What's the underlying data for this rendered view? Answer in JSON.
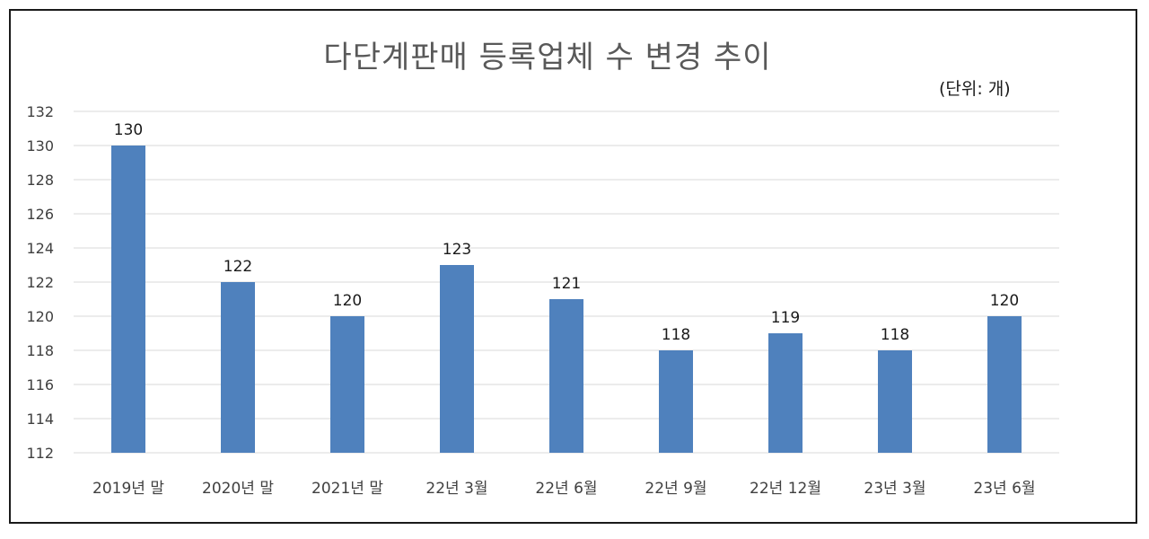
{
  "chart_data": {
    "type": "bar",
    "title": "다단계판매 등록업체 수 변경 추이",
    "unit_note": "(단위: 개)",
    "categories": [
      "2019년 말",
      "2020년 말",
      "2021년 말",
      "22년 3월",
      "22년 6월",
      "22년 9월",
      "22년 12월",
      "23년 3월",
      "23년 6월"
    ],
    "values": [
      130,
      122,
      120,
      123,
      121,
      118,
      119,
      118,
      120
    ],
    "ylim": [
      112,
      132
    ],
    "yticks": [
      112,
      114,
      116,
      118,
      120,
      122,
      124,
      126,
      128,
      130,
      132
    ],
    "grid": true,
    "bar_color": "#4f81bd",
    "grid_color": "#d9d9d9",
    "data_labels": true
  }
}
